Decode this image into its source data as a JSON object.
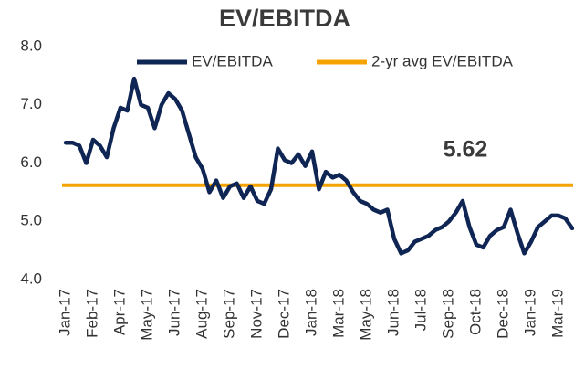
{
  "chart_data": {
    "type": "line",
    "title": "EV/EBITDA",
    "categories": [
      "Jan-17",
      null,
      null,
      null,
      "Feb-17",
      null,
      null,
      null,
      "Apr-17",
      null,
      null,
      null,
      "May-17",
      null,
      null,
      null,
      "Jun-17",
      null,
      null,
      null,
      "Aug-17",
      null,
      null,
      null,
      "Sep-17",
      null,
      null,
      null,
      "Nov-17",
      null,
      null,
      null,
      "Dec-17",
      null,
      null,
      null,
      "Jan-18",
      null,
      null,
      null,
      "Mar-18",
      null,
      null,
      null,
      "May-18",
      null,
      null,
      null,
      "Jun-18",
      null,
      null,
      null,
      "Jul-18",
      null,
      null,
      null,
      "Sep-18",
      null,
      null,
      null,
      "Oct-18",
      null,
      null,
      null,
      "Dec-18",
      null,
      null,
      null,
      "Jan-19",
      null,
      null,
      null,
      "Mar-19",
      null,
      null
    ],
    "series": [
      {
        "name": "EV/EBITDA",
        "color": "#0f2554",
        "values": [
          6.35,
          6.35,
          6.3,
          6.0,
          6.4,
          6.3,
          6.1,
          6.6,
          6.95,
          6.9,
          7.45,
          7.0,
          6.95,
          6.6,
          7.0,
          7.2,
          7.1,
          6.9,
          6.5,
          6.1,
          5.9,
          5.5,
          5.7,
          5.4,
          5.6,
          5.65,
          5.4,
          5.6,
          5.35,
          5.3,
          5.55,
          6.25,
          6.05,
          6.0,
          6.15,
          5.95,
          6.2,
          5.55,
          5.85,
          5.75,
          5.8,
          5.7,
          5.5,
          5.35,
          5.3,
          5.2,
          5.15,
          5.2,
          4.7,
          4.45,
          4.5,
          4.65,
          4.7,
          4.75,
          4.85,
          4.9,
          5.0,
          5.15,
          5.35,
          4.9,
          4.6,
          4.55,
          4.75,
          4.85,
          4.9,
          5.2,
          4.8,
          4.45,
          4.65,
          4.9,
          5.0,
          5.1,
          5.1,
          5.05,
          4.88
        ]
      }
    ],
    "reference_line": {
      "name": "2-yr avg EV/EBITDA",
      "value": 5.62,
      "color": "#f5a300"
    },
    "ylim": [
      4,
      8
    ],
    "yticks": [
      {
        "value": 4,
        "label": "4.0"
      },
      {
        "value": 5,
        "label": "5.0"
      },
      {
        "value": 6,
        "label": "6.0"
      },
      {
        "value": 7,
        "label": "7.0"
      },
      {
        "value": 8,
        "label": "8.0"
      }
    ],
    "grid": false,
    "legend": "top"
  }
}
